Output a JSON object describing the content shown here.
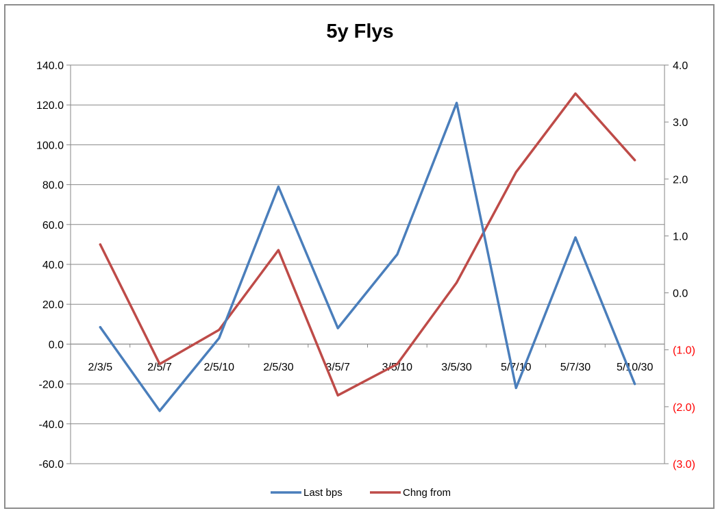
{
  "chart_data": {
    "type": "line",
    "title": "5y Flys",
    "categories": [
      "2/3/5",
      "2/5/7",
      "2/5/10",
      "2/5/30",
      "3/5/7",
      "3/5/10",
      "3/5/30",
      "5/7/10",
      "5/7/30",
      "5/10/30"
    ],
    "series": [
      {
        "name": "Last bps",
        "axis": "left",
        "color": "#4a7ebb",
        "values": [
          8.5,
          -33.5,
          3.0,
          79.0,
          8.0,
          45.0,
          121.0,
          -22.0,
          53.5,
          -20.0
        ]
      },
      {
        "name": "Chng from",
        "axis": "right",
        "color": "#be4b48",
        "values": [
          0.85,
          -1.25,
          -0.65,
          0.75,
          -1.8,
          -1.25,
          0.18,
          2.12,
          3.5,
          2.33
        ]
      }
    ],
    "y_left": {
      "min": -60,
      "max": 140,
      "step": 20,
      "tick_labels": [
        "-60.0",
        "-40.0",
        "-20.0",
        "0.0",
        "20.0",
        "40.0",
        "60.0",
        "80.0",
        "100.0",
        "120.0",
        "140.0"
      ]
    },
    "y_right": {
      "min": -3,
      "max": 4,
      "step": 1,
      "tick_labels": [
        "(3.0)",
        "(2.0)",
        "(1.0)",
        "0.0",
        "1.0",
        "2.0",
        "3.0",
        "4.0"
      ],
      "negative_label_color": "#ff0000"
    },
    "grid": true,
    "legend_position": "bottom"
  }
}
